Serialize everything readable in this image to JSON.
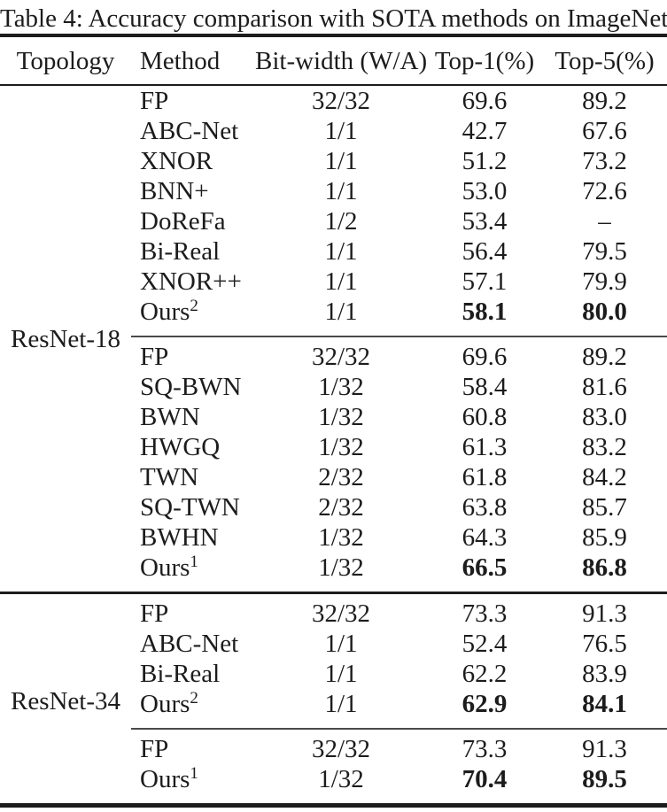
{
  "title": "Table 4: Accuracy comparison with SOTA methods on ImageNet.",
  "columns": [
    "Topology",
    "Method",
    "Bit-width (W/A)",
    "Top-1(%)",
    "Top-5(%)"
  ],
  "colors": {
    "text": "#1c1c1c",
    "background": "#ffffff",
    "rule": "#1c1c1c"
  },
  "groups": [
    {
      "topology": "ResNet-18",
      "blocks": [
        {
          "rows": [
            {
              "method": "FP",
              "sup": "",
              "bitwidth": "32/32",
              "top1": "69.6",
              "top5": "89.2",
              "bold": false
            },
            {
              "method": "ABC-Net",
              "sup": "",
              "bitwidth": "1/1",
              "top1": "42.7",
              "top5": "67.6",
              "bold": false
            },
            {
              "method": "XNOR",
              "sup": "",
              "bitwidth": "1/1",
              "top1": "51.2",
              "top5": "73.2",
              "bold": false
            },
            {
              "method": "BNN+",
              "sup": "",
              "bitwidth": "1/1",
              "top1": "53.0",
              "top5": "72.6",
              "bold": false
            },
            {
              "method": "DoReFa",
              "sup": "",
              "bitwidth": "1/2",
              "top1": "53.4",
              "top5": "–",
              "bold": false
            },
            {
              "method": "Bi-Real",
              "sup": "",
              "bitwidth": "1/1",
              "top1": "56.4",
              "top5": "79.5",
              "bold": false
            },
            {
              "method": "XNOR++",
              "sup": "",
              "bitwidth": "1/1",
              "top1": "57.1",
              "top5": "79.9",
              "bold": false
            },
            {
              "method": "Ours",
              "sup": "2",
              "bitwidth": "1/1",
              "top1": "58.1",
              "top5": "80.0",
              "bold": true
            }
          ]
        },
        {
          "rows": [
            {
              "method": "FP",
              "sup": "",
              "bitwidth": "32/32",
              "top1": "69.6",
              "top5": "89.2",
              "bold": false
            },
            {
              "method": "SQ-BWN",
              "sup": "",
              "bitwidth": "1/32",
              "top1": "58.4",
              "top5": "81.6",
              "bold": false
            },
            {
              "method": "BWN",
              "sup": "",
              "bitwidth": "1/32",
              "top1": "60.8",
              "top5": "83.0",
              "bold": false
            },
            {
              "method": "HWGQ",
              "sup": "",
              "bitwidth": "1/32",
              "top1": "61.3",
              "top5": "83.2",
              "bold": false
            },
            {
              "method": "TWN",
              "sup": "",
              "bitwidth": "2/32",
              "top1": "61.8",
              "top5": "84.2",
              "bold": false
            },
            {
              "method": "SQ-TWN",
              "sup": "",
              "bitwidth": "2/32",
              "top1": "63.8",
              "top5": "85.7",
              "bold": false
            },
            {
              "method": "BWHN",
              "sup": "",
              "bitwidth": "1/32",
              "top1": "64.3",
              "top5": "85.9",
              "bold": false
            },
            {
              "method": "Ours",
              "sup": "1",
              "bitwidth": "1/32",
              "top1": "66.5",
              "top5": "86.8",
              "bold": true
            }
          ]
        }
      ]
    },
    {
      "topology": "ResNet-34",
      "blocks": [
        {
          "rows": [
            {
              "method": "FP",
              "sup": "",
              "bitwidth": "32/32",
              "top1": "73.3",
              "top5": "91.3",
              "bold": false
            },
            {
              "method": "ABC-Net",
              "sup": "",
              "bitwidth": "1/1",
              "top1": "52.4",
              "top5": "76.5",
              "bold": false
            },
            {
              "method": "Bi-Real",
              "sup": "",
              "bitwidth": "1/1",
              "top1": "62.2",
              "top5": "83.9",
              "bold": false
            },
            {
              "method": "Ours",
              "sup": "2",
              "bitwidth": "1/1",
              "top1": "62.9",
              "top5": "84.1",
              "bold": true
            }
          ]
        },
        {
          "rows": [
            {
              "method": "FP",
              "sup": "",
              "bitwidth": "32/32",
              "top1": "73.3",
              "top5": "91.3",
              "bold": false
            },
            {
              "method": "Ours",
              "sup": "1",
              "bitwidth": "1/32",
              "top1": "70.4",
              "top5": "89.5",
              "bold": true
            }
          ]
        }
      ]
    }
  ]
}
